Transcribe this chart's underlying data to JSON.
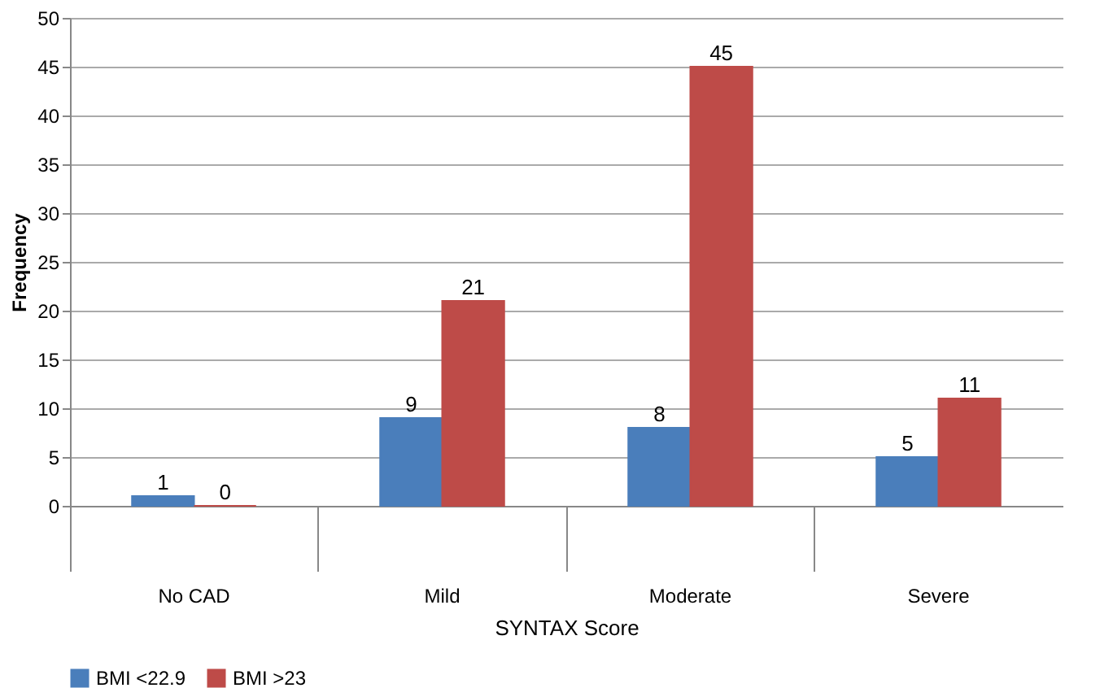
{
  "chart_data": {
    "type": "bar",
    "xlabel": "SYNTAX Score",
    "ylabel": "Frequency",
    "categories": [
      "No CAD",
      "Mild",
      "Moderate",
      "Severe"
    ],
    "series": [
      {
        "name": "BMI <22.9",
        "color": "#4a7ebb",
        "values": [
          1,
          9,
          8,
          5
        ]
      },
      {
        "name": "BMI >23",
        "color": "#be4b48",
        "values": [
          0,
          21,
          45,
          11
        ]
      }
    ],
    "ylim": [
      0,
      50
    ],
    "yticks": [
      0,
      5,
      10,
      15,
      20,
      25,
      30,
      35,
      40,
      45,
      50
    ],
    "grid": "y",
    "legend": "bottom",
    "data_labels": true
  }
}
